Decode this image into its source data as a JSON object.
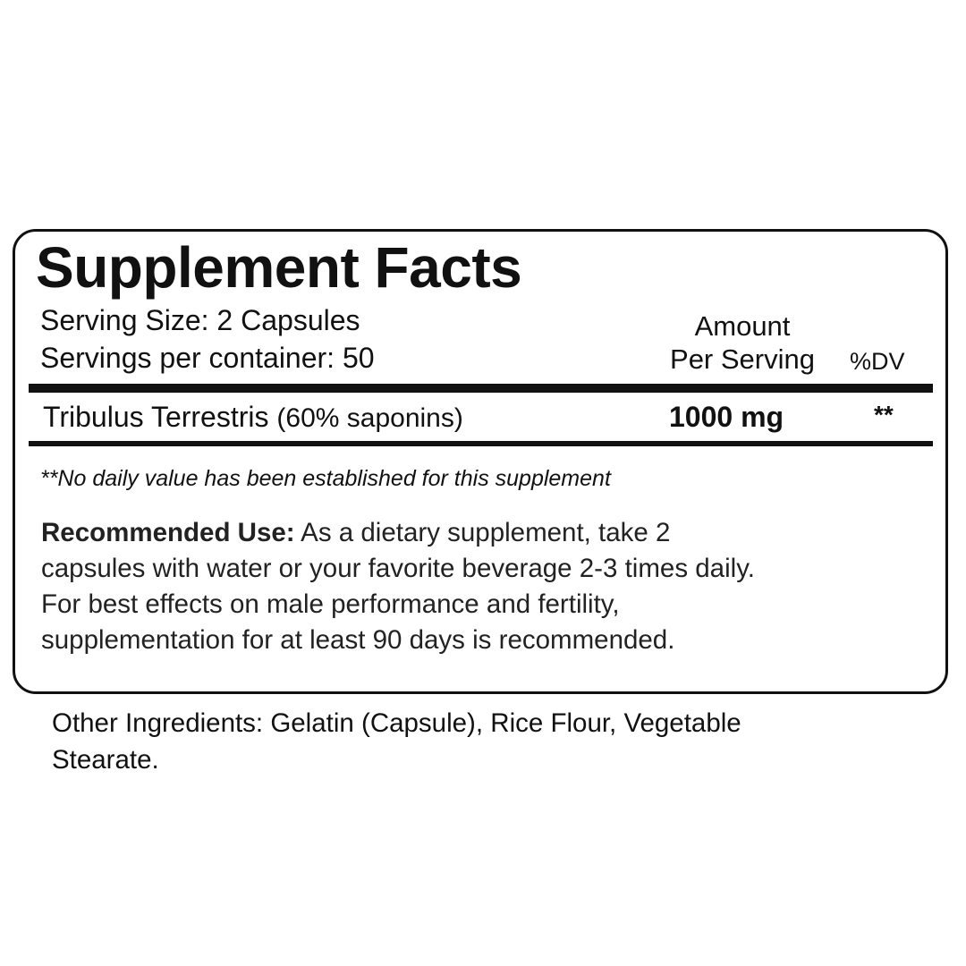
{
  "title": "Supplement Facts",
  "serving_size": "Serving Size: 2 Capsules",
  "servings_per_container": "Servings per container: 50",
  "header": {
    "amount_line1": "Amount",
    "amount_line2": "Per Serving",
    "dv": "%DV"
  },
  "ingredients": [
    {
      "name": "Tribulus Terrestris",
      "detail": "(60% saponins)",
      "amount": "1000 mg",
      "dv": "**"
    }
  ],
  "footnote": "**No daily value has been established for this supplement",
  "recommended": {
    "label": "Recommended Use:",
    "lines": [
      " As a dietary supplement, take 2",
      "capsules with water or your favorite beverage 2-3 times daily.",
      "For best effects on male performance and fertility,",
      "supplementation for at least 90 days is recommended."
    ]
  },
  "other_ingredients": {
    "lines": [
      "Other Ingredients: Gelatin (Capsule), Rice Flour, Vegetable",
      "Stearate."
    ]
  }
}
